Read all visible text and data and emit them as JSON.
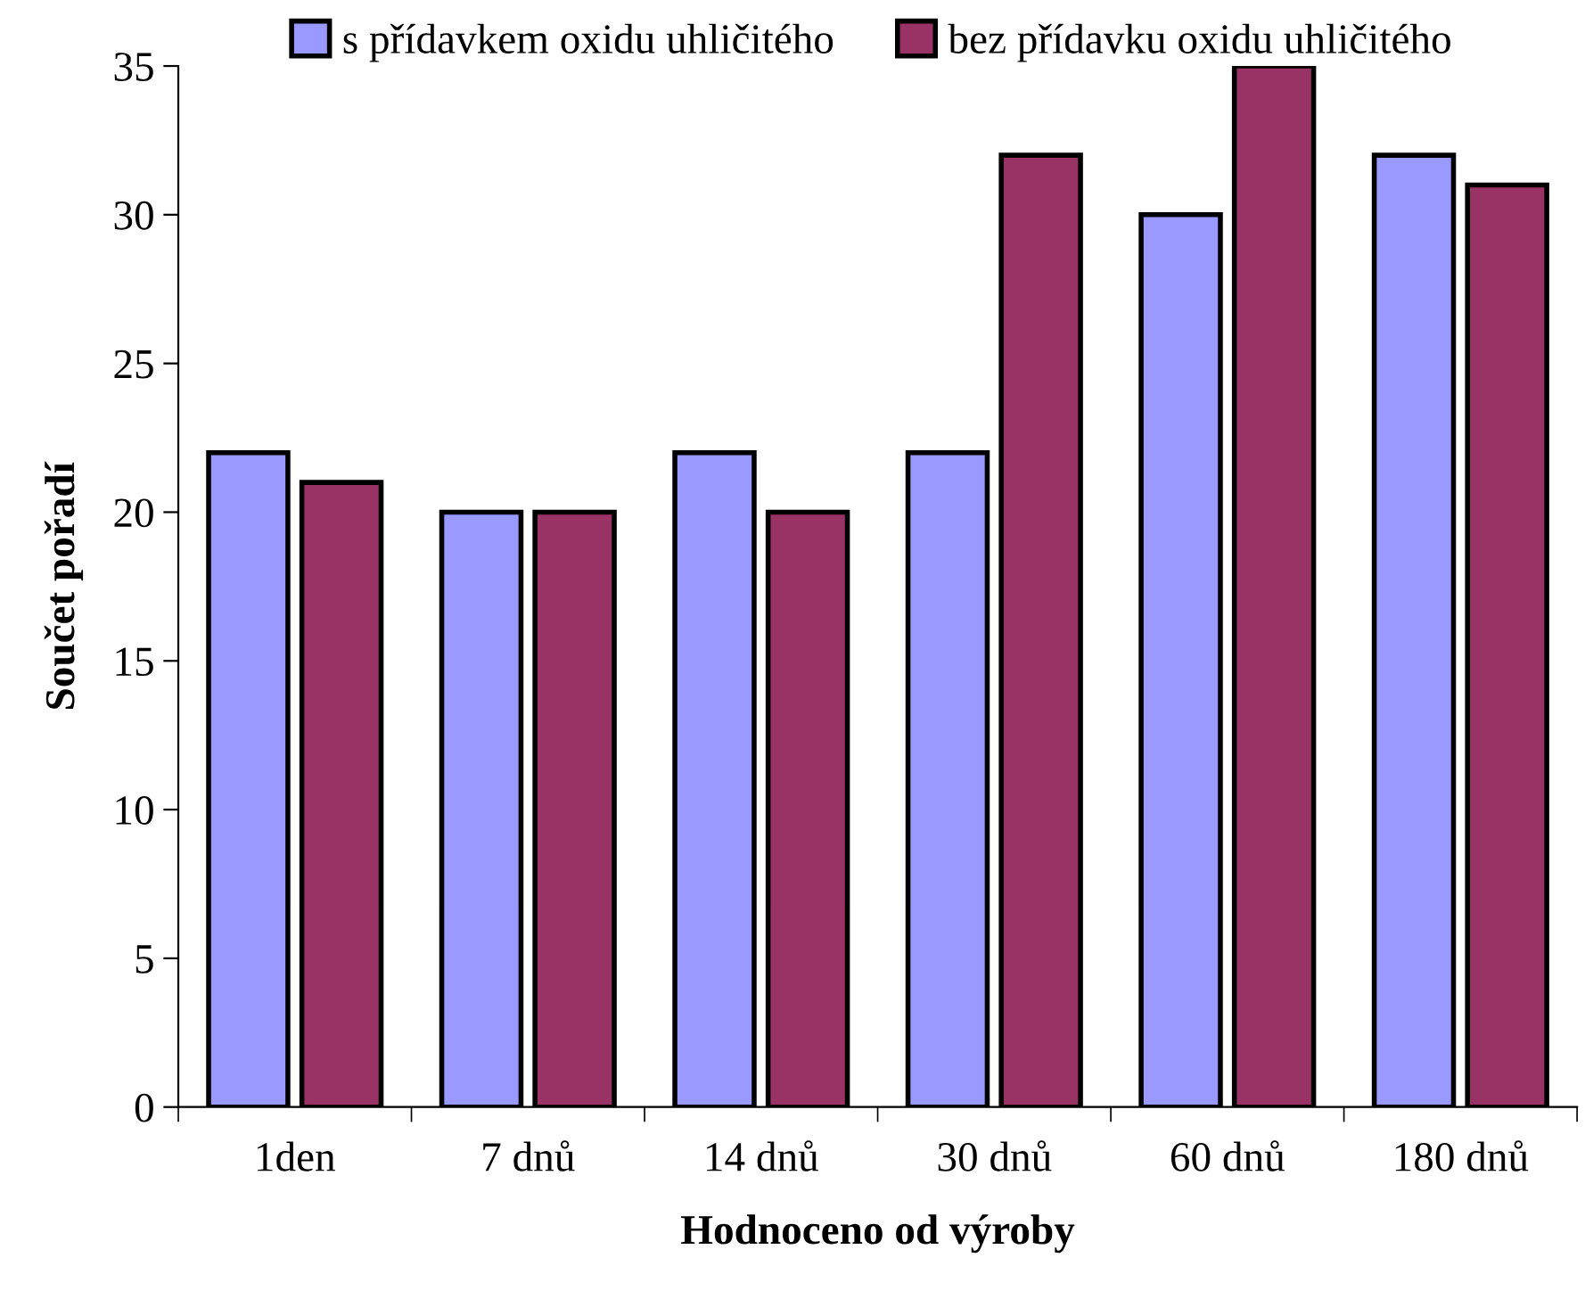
{
  "chart_data": {
    "type": "bar",
    "xlabel": "Hodnoceno od výroby",
    "ylabel": "Součet pořadí",
    "categories": [
      "1den",
      "7 dnů",
      "14 dnů",
      "30 dnů",
      "60 dnů",
      "180 dnů"
    ],
    "series": [
      {
        "name": "s přídavkem oxidu uhličitého",
        "color": "#9999ff",
        "values": [
          22,
          20,
          22,
          22,
          30,
          32
        ]
      },
      {
        "name": "bez přídavku oxidu uhličitého",
        "color": "#993366",
        "values": [
          21,
          20,
          20,
          32,
          35,
          31
        ]
      }
    ],
    "ylim": [
      0,
      35
    ],
    "yticks": [
      0,
      5,
      10,
      15,
      20,
      25,
      30,
      35
    ],
    "grid": false,
    "legend": "top"
  }
}
